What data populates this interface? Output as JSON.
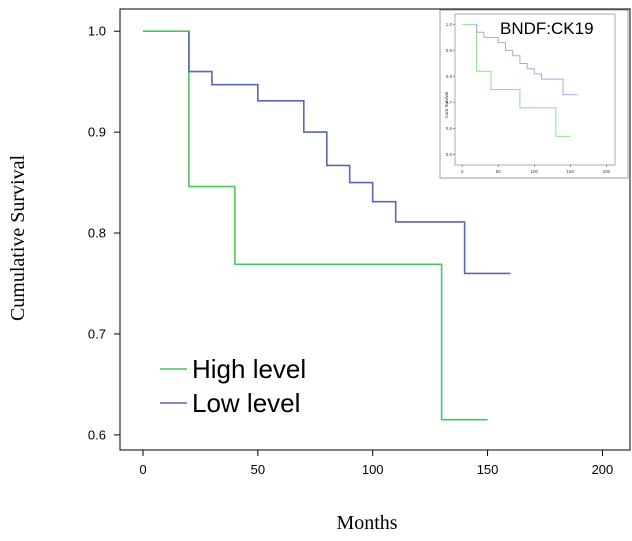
{
  "chart_data": {
    "type": "line",
    "step": true,
    "xlabel": "Months",
    "ylabel": "Cumulative  Survival",
    "xlim": [
      -10,
      212
    ],
    "ylim": [
      0.585,
      1.022
    ],
    "x_ticks": [
      0,
      50,
      100,
      150,
      200
    ],
    "x_tick_labels": [
      "0",
      "50",
      "100",
      "150",
      "200"
    ],
    "y_ticks": [
      0.6,
      0.7,
      0.8,
      0.9,
      1.0
    ],
    "y_tick_labels": [
      "0.6",
      "0.7",
      "0.8",
      "0.9",
      "1.0"
    ],
    "grid": false,
    "legend_position": "bottom-left",
    "series": [
      {
        "name": "High level",
        "color": "#4cc45c",
        "x": [
          0,
          20,
          20,
          40,
          40,
          130,
          130,
          150
        ],
        "y": [
          1.0,
          1.0,
          0.846,
          0.846,
          0.769,
          0.769,
          0.615,
          0.615
        ]
      },
      {
        "name": "Low level",
        "color": "#5a66b4",
        "x": [
          20,
          20,
          30,
          30,
          50,
          50,
          70,
          70,
          80,
          80,
          90,
          90,
          100,
          100,
          110,
          110,
          140,
          140,
          160
        ],
        "y": [
          1.0,
          0.96,
          0.96,
          0.947,
          0.947,
          0.931,
          0.931,
          0.9,
          0.9,
          0.867,
          0.867,
          0.85,
          0.85,
          0.831,
          0.831,
          0.811,
          0.811,
          0.76,
          0.76
        ]
      }
    ],
    "inset": {
      "label": "BNDF:CK19",
      "xlim": [
        -10,
        212
      ],
      "ylim": [
        0.46,
        1.04
      ],
      "x_ticks": [
        0,
        50,
        100,
        150,
        200
      ],
      "x_tick_labels": [
        "0",
        "50",
        "100",
        "150",
        "200"
      ],
      "y_ticks": [
        0.5,
        0.6,
        0.7,
        0.8,
        0.9,
        1.0
      ],
      "y_tick_labels": [
        "0.5",
        "0.6",
        "0.7",
        "0.8",
        "0.9",
        "1.0"
      ],
      "ylabel": "Cum Survival",
      "series": [
        {
          "color": "#8ee08e",
          "x": [
            0,
            20,
            20,
            40,
            40,
            80,
            80,
            130,
            130,
            150
          ],
          "y": [
            1.0,
            1.0,
            0.82,
            0.82,
            0.75,
            0.75,
            0.68,
            0.68,
            0.57,
            0.57
          ]
        },
        {
          "color": "#a5aade",
          "x": [
            20,
            20,
            30,
            30,
            50,
            50,
            60,
            60,
            70,
            70,
            80,
            80,
            90,
            90,
            100,
            100,
            110,
            110,
            140,
            140,
            160
          ],
          "y": [
            1.0,
            0.97,
            0.97,
            0.95,
            0.95,
            0.93,
            0.93,
            0.9,
            0.9,
            0.88,
            0.88,
            0.85,
            0.85,
            0.83,
            0.83,
            0.81,
            0.81,
            0.79,
            0.79,
            0.73,
            0.73
          ]
        }
      ]
    }
  }
}
